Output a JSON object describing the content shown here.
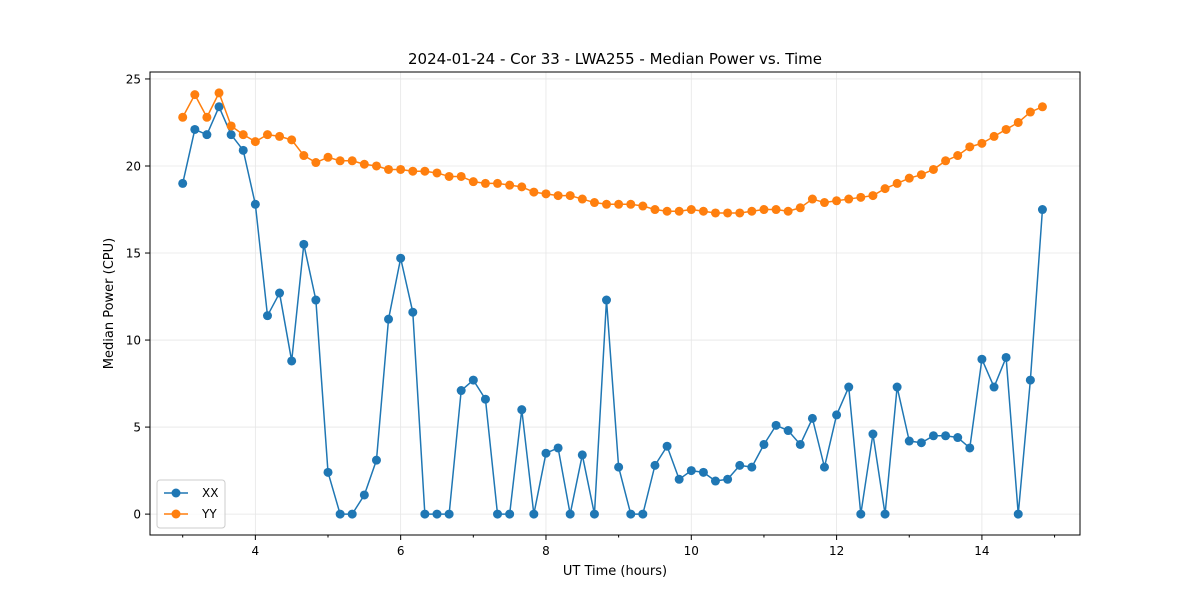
{
  "chart_data": {
    "type": "line",
    "title": "2024-01-24 - Cor 33 - LWA255 - Median Power vs. Time",
    "xlabel": "UT Time (hours)",
    "ylabel": "Median Power (CPU)",
    "xlim": [
      2.55,
      15.35
    ],
    "ylim": [
      -1.2,
      25.4
    ],
    "xticks": [
      4,
      6,
      8,
      10,
      12,
      14
    ],
    "xtick_labels": [
      "4",
      "6",
      "8",
      "10",
      "12",
      "14"
    ],
    "yticks": [
      0,
      5,
      10,
      15,
      20,
      25
    ],
    "ytick_labels": [
      "0",
      "5",
      "10",
      "15",
      "20",
      "25"
    ],
    "grid": true,
    "legend_position": "lower-left",
    "x": [
      3.0,
      3.167,
      3.333,
      3.5,
      3.667,
      3.833,
      4.0,
      4.167,
      4.333,
      4.5,
      4.667,
      4.833,
      5.0,
      5.167,
      5.333,
      5.5,
      5.667,
      5.833,
      6.0,
      6.167,
      6.333,
      6.5,
      6.667,
      6.833,
      7.0,
      7.167,
      7.333,
      7.5,
      7.667,
      7.833,
      8.0,
      8.167,
      8.333,
      8.5,
      8.667,
      8.833,
      9.0,
      9.167,
      9.333,
      9.5,
      9.667,
      9.833,
      10.0,
      10.167,
      10.333,
      10.5,
      10.667,
      10.833,
      11.0,
      11.167,
      11.333,
      11.5,
      11.667,
      11.833,
      12.0,
      12.167,
      12.333,
      12.5,
      12.667,
      12.833,
      13.0,
      13.167,
      13.333,
      13.5,
      13.667,
      13.833,
      14.0,
      14.167,
      14.333,
      14.5,
      14.667,
      14.833
    ],
    "series": [
      {
        "name": "XX",
        "color": "#1f77b4",
        "values": [
          19.0,
          22.1,
          21.8,
          23.4,
          21.8,
          20.9,
          17.8,
          11.4,
          12.7,
          8.8,
          15.5,
          12.3,
          2.4,
          0.0,
          0.0,
          1.1,
          3.1,
          11.2,
          14.7,
          11.6,
          0.0,
          0.0,
          0.0,
          7.1,
          7.7,
          6.6,
          0.0,
          0.0,
          6.0,
          0.0,
          3.5,
          3.8,
          0.0,
          3.4,
          0.0,
          12.3,
          2.7,
          0.0,
          0.0,
          2.8,
          3.9,
          2.0,
          2.5,
          2.4,
          1.9,
          2.0,
          2.8,
          2.7,
          4.0,
          5.1,
          4.8,
          4.0,
          5.5,
          2.7,
          5.7,
          7.3,
          0.0,
          4.6,
          0.0,
          7.3,
          4.2,
          4.1,
          4.5,
          4.5,
          4.4,
          3.8,
          8.9,
          7.3,
          9.0,
          0.0,
          7.7,
          17.5
        ]
      },
      {
        "name": "YY",
        "color": "#ff7f0e",
        "values": [
          22.8,
          24.1,
          22.8,
          24.2,
          22.3,
          21.8,
          21.4,
          21.8,
          21.7,
          21.5,
          20.6,
          20.2,
          20.5,
          20.3,
          20.3,
          20.1,
          20.0,
          19.8,
          19.8,
          19.7,
          19.7,
          19.6,
          19.4,
          19.4,
          19.1,
          19.0,
          19.0,
          18.9,
          18.8,
          18.5,
          18.4,
          18.3,
          18.3,
          18.1,
          17.9,
          17.8,
          17.8,
          17.8,
          17.7,
          17.5,
          17.4,
          17.4,
          17.5,
          17.4,
          17.3,
          17.3,
          17.3,
          17.4,
          17.5,
          17.5,
          17.4,
          17.6,
          18.1,
          17.9,
          18.0,
          18.1,
          18.2,
          18.3,
          18.7,
          19.0,
          19.3,
          19.5,
          19.8,
          20.3,
          20.6,
          21.1,
          21.3,
          21.7,
          22.1,
          22.5,
          23.1,
          23.4
        ]
      }
    ]
  }
}
